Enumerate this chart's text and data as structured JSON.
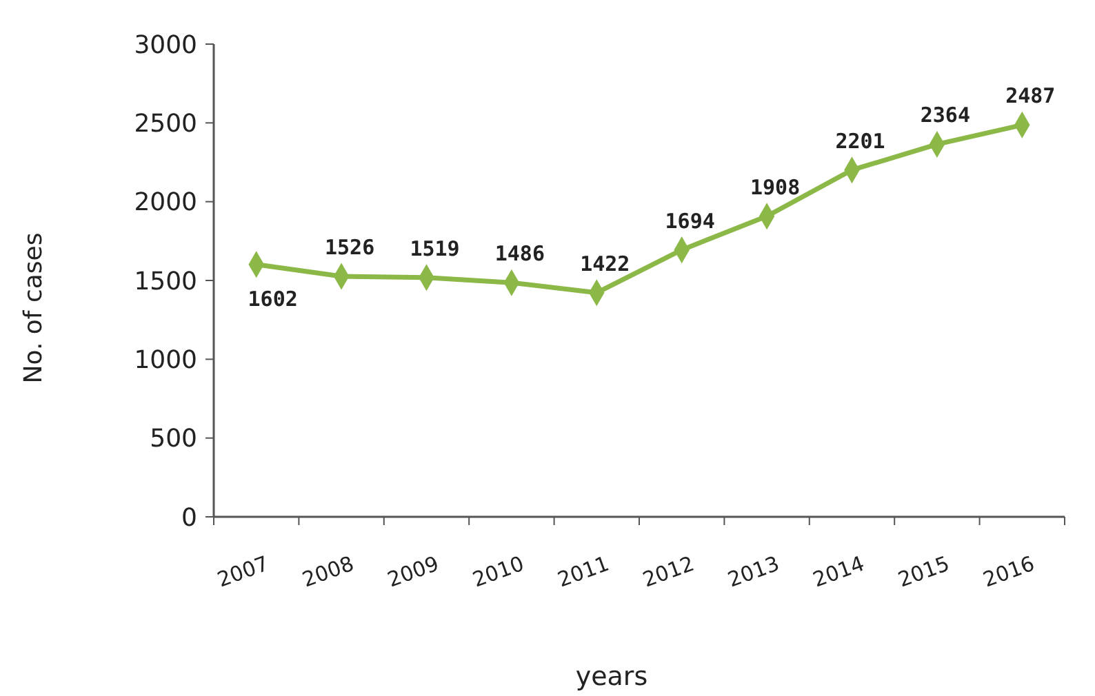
{
  "chart_data": {
    "type": "line",
    "xlabel": "years",
    "ylabel": "No. of cases",
    "categories": [
      "2007",
      "2008",
      "2009",
      "2010",
      "2011",
      "2012",
      "2013",
      "2014",
      "2015",
      "2016"
    ],
    "series": [
      {
        "color": "#8cb848",
        "values": [
          1602,
          1526,
          1519,
          1486,
          1422,
          1694,
          1908,
          2201,
          2364,
          2487
        ]
      }
    ],
    "ylim": [
      0,
      3000
    ],
    "yticks": [
      0,
      500,
      1000,
      1500,
      2000,
      2500,
      3000
    ],
    "grid": false,
    "marker": "diamond",
    "line_style": "solid",
    "data_labels": true
  }
}
